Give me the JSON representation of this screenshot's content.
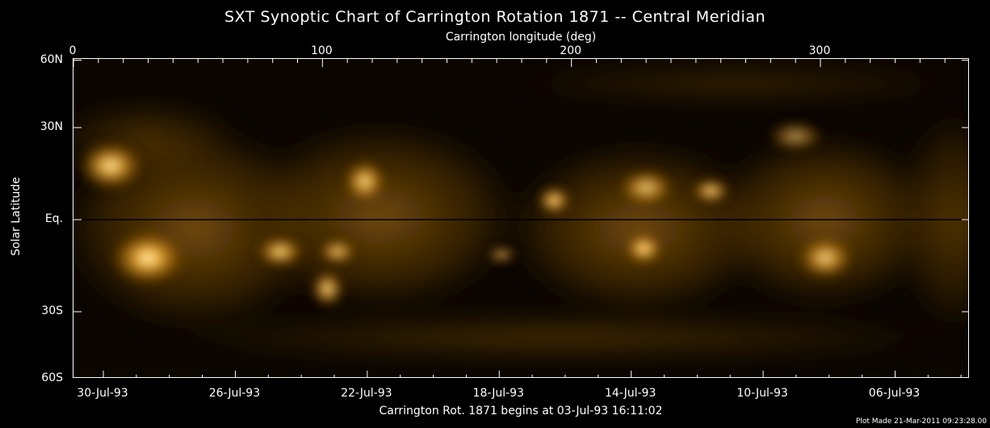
{
  "title": "SXT Synoptic Chart of Carrington Rotation 1871 -- Central Meridian",
  "top_axis_label": "Carrington longitude (deg)",
  "y_axis_label": "Solar Latitude",
  "footer": "Carrington Rot. 1871 begins at 03-Jul-93 16:11:02",
  "plot_made": "Plot Made 21-Mar-2011 09:23:28.00",
  "colors": {
    "background": "#000000",
    "corona_bright": "#ffd27a",
    "corona_mid": "#b8770f",
    "corona_dim": "#3a2304",
    "axis": "#ffffff"
  },
  "chart_data": {
    "type": "heatmap",
    "title": "SXT Synoptic Chart of Carrington Rotation 1871 -- Central Meridian",
    "xlabel_top": "Carrington longitude (deg)",
    "ylabel": "Solar Latitude",
    "xlim": [
      0,
      360
    ],
    "top_ticks": [
      {
        "value": 0,
        "label": "0"
      },
      {
        "value": 100,
        "label": "100"
      },
      {
        "value": 200,
        "label": "200"
      },
      {
        "value": 300,
        "label": "300"
      }
    ],
    "lat_ticks": [
      {
        "value": 60,
        "label": "60N"
      },
      {
        "value": 30,
        "label": "30N"
      },
      {
        "value": 0,
        "label": "Eq."
      },
      {
        "value": -30,
        "label": "30S"
      },
      {
        "value": -60,
        "label": "60S"
      }
    ],
    "bottom_ticks": [
      {
        "value": 12,
        "label": "30-Jul-93"
      },
      {
        "value": 65,
        "label": "26-Jul-93"
      },
      {
        "value": 118,
        "label": "22-Jul-93"
      },
      {
        "value": 171,
        "label": "18-Jul-93"
      },
      {
        "value": 224,
        "label": "14-Jul-93"
      },
      {
        "value": 277,
        "label": "10-Jul-93"
      },
      {
        "value": 330,
        "label": "06-Jul-93"
      }
    ],
    "equator_line": true,
    "bright_regions": [
      {
        "lon": 15,
        "lat": 17,
        "intensity": 0.95,
        "w": 14,
        "h": 16
      },
      {
        "lon": 30,
        "lat": -12,
        "intensity": 1.0,
        "w": 16,
        "h": 18
      },
      {
        "lon": 83,
        "lat": -10,
        "intensity": 0.9,
        "w": 10,
        "h": 10
      },
      {
        "lon": 102,
        "lat": -22,
        "intensity": 0.9,
        "w": 7,
        "h": 12
      },
      {
        "lon": 106,
        "lat": -10,
        "intensity": 0.85,
        "w": 8,
        "h": 8
      },
      {
        "lon": 117,
        "lat": 12,
        "intensity": 0.9,
        "w": 9,
        "h": 14
      },
      {
        "lon": 172,
        "lat": -11,
        "intensity": 0.75,
        "w": 6,
        "h": 5
      },
      {
        "lon": 193,
        "lat": 6,
        "intensity": 0.95,
        "w": 7,
        "h": 9
      },
      {
        "lon": 229,
        "lat": -9,
        "intensity": 1.0,
        "w": 8,
        "h": 10
      },
      {
        "lon": 230,
        "lat": 10,
        "intensity": 0.8,
        "w": 12,
        "h": 12
      },
      {
        "lon": 256,
        "lat": 9,
        "intensity": 0.9,
        "w": 8,
        "h": 8
      },
      {
        "lon": 290,
        "lat": 27,
        "intensity": 0.6,
        "w": 12,
        "h": 10
      },
      {
        "lon": 302,
        "lat": -12,
        "intensity": 0.85,
        "w": 12,
        "h": 14
      }
    ]
  }
}
